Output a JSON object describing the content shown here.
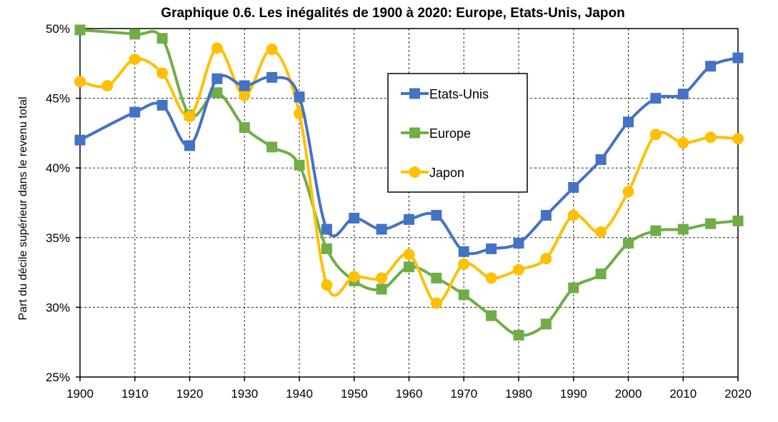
{
  "chart_data": {
    "type": "line",
    "title": "Graphique 0.6. Les inégalités de 1900 à 2020: Europe, Etats-Unis, Japon",
    "xlabel": "",
    "ylabel": "Part du décile supérieur dans le revenu total",
    "xlim": [
      1900,
      2020
    ],
    "ylim": [
      25,
      50
    ],
    "x_ticks": [
      "1900",
      "1910",
      "1920",
      "1930",
      "1940",
      "1950",
      "1960",
      "1970",
      "1980",
      "1990",
      "2000",
      "2010",
      "2020"
    ],
    "y_ticks": [
      "25%",
      "30%",
      "35%",
      "40%",
      "45%",
      "50%"
    ],
    "grid": true,
    "legend_position": "upper-center",
    "series": [
      {
        "name": "Etats-Unis",
        "color": "#4472C4",
        "marker": "square",
        "x": [
          1900,
          1910,
          1915,
          1920,
          1925,
          1930,
          1935,
          1940,
          1945,
          1950,
          1955,
          1960,
          1965,
          1970,
          1975,
          1980,
          1985,
          1990,
          1995,
          2000,
          2005,
          2010,
          2015,
          2020
        ],
        "values": [
          42.0,
          44.0,
          44.5,
          41.6,
          46.4,
          45.9,
          46.5,
          45.1,
          35.6,
          36.4,
          35.6,
          36.3,
          36.6,
          34.0,
          34.2,
          34.6,
          36.6,
          38.6,
          40.6,
          43.3,
          45.0,
          45.3,
          47.3,
          47.9
        ]
      },
      {
        "name": "Europe",
        "color": "#70AD47",
        "marker": "square",
        "x": [
          1900,
          1910,
          1915,
          1920,
          1925,
          1930,
          1935,
          1940,
          1945,
          1950,
          1955,
          1960,
          1965,
          1970,
          1975,
          1980,
          1985,
          1990,
          1995,
          2000,
          2005,
          2010,
          2015,
          2020
        ],
        "values": [
          49.9,
          49.6,
          49.3,
          43.8,
          45.4,
          42.9,
          41.5,
          40.2,
          34.2,
          31.9,
          31.3,
          32.9,
          32.1,
          30.9,
          29.4,
          28.0,
          28.8,
          31.4,
          32.4,
          34.6,
          35.5,
          35.6,
          36.0,
          36.2
        ]
      },
      {
        "name": "Japon",
        "color": "#FFC000",
        "marker": "circle",
        "x": [
          1900,
          1905,
          1910,
          1915,
          1920,
          1925,
          1930,
          1935,
          1940,
          1945,
          1950,
          1955,
          1960,
          1965,
          1970,
          1975,
          1980,
          1985,
          1990,
          1995,
          2000,
          2005,
          2010,
          2015,
          2020
        ],
        "values": [
          46.2,
          45.9,
          47.8,
          46.8,
          43.7,
          48.6,
          45.2,
          48.5,
          43.9,
          31.6,
          32.2,
          32.1,
          33.8,
          30.3,
          33.1,
          32.1,
          32.7,
          33.5,
          36.6,
          35.4,
          38.3,
          42.4,
          41.8,
          42.2,
          42.1
        ]
      }
    ]
  }
}
